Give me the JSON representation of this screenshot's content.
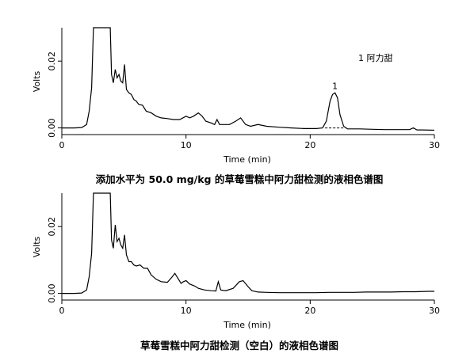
{
  "chart_data": [
    {
      "type": "line",
      "title": "添加水平为 50.0 mg/kg 的草莓雪糕中阿力甜检测的液相色谱图",
      "xlabel": "Time (min)",
      "ylabel": "Volts",
      "xlim": [
        0,
        30
      ],
      "ylim": [
        -0.002,
        0.03
      ],
      "xticks": [
        "0",
        "10",
        "20",
        "30"
      ],
      "xtick_values": [
        0,
        10,
        20,
        30
      ],
      "yticks": [
        "0.00",
        "0.02"
      ],
      "ytick_values": [
        0.0,
        0.02
      ],
      "legend": {
        "text": "1   阿力甜",
        "placement": "top-right"
      },
      "annotations": [
        {
          "text": "1",
          "x": 22.0,
          "y": 0.0105
        }
      ],
      "baseline": {
        "x": [
          21.2,
          22.8
        ],
        "y": [
          0.0,
          0.0
        ],
        "style": "dashed"
      },
      "grid": false,
      "series": [
        {
          "x": [
            0,
            1.0,
            1.6,
            2.0,
            2.2,
            2.4,
            2.55,
            3.9,
            4.0,
            4.15,
            4.3,
            4.45,
            4.6,
            4.75,
            4.9,
            5.05,
            5.2,
            5.4,
            5.6,
            5.8,
            6.0,
            6.2,
            6.5,
            6.8,
            7.2,
            7.6,
            8.0,
            8.5,
            9.0,
            9.5,
            10.0,
            10.3,
            10.6,
            11.0,
            11.3,
            11.6,
            12.0,
            12.3,
            12.5,
            12.7,
            13.0,
            13.5,
            14.0,
            14.4,
            14.8,
            15.2,
            15.8,
            16.5,
            17.5,
            18.5,
            19.5,
            20.5,
            21.0,
            21.3,
            21.6,
            21.8,
            22.0,
            22.2,
            22.4,
            22.7,
            23.0,
            24.0,
            25.0,
            26.0,
            27.0,
            28.0,
            28.3,
            28.6,
            29.0,
            30.0
          ],
          "y": [
            0.0,
            0.0,
            0.0001,
            0.001,
            0.005,
            0.012,
            0.03,
            0.03,
            0.016,
            0.0135,
            0.0175,
            0.015,
            0.016,
            0.014,
            0.0135,
            0.019,
            0.0115,
            0.0105,
            0.01,
            0.0085,
            0.008,
            0.007,
            0.0068,
            0.005,
            0.0045,
            0.0035,
            0.003,
            0.0028,
            0.0025,
            0.0025,
            0.0035,
            0.003,
            0.0035,
            0.0045,
            0.0035,
            0.002,
            0.0015,
            0.001,
            0.0025,
            0.001,
            0.001,
            0.001,
            0.002,
            0.003,
            0.001,
            0.0005,
            0.001,
            0.0005,
            0.0002,
            0.0,
            -0.0002,
            -0.0002,
            0.0,
            0.002,
            0.008,
            0.01,
            0.0105,
            0.009,
            0.004,
            0.0005,
            -0.0003,
            -0.0003,
            -0.0004,
            -0.0005,
            -0.0005,
            -0.0005,
            0.0,
            -0.0006,
            -0.0006,
            -0.0007
          ]
        }
      ]
    },
    {
      "type": "line",
      "title": "草莓雪糕中阿力甜检测（空白）的液相色谱图",
      "xlabel": "Time (min)",
      "ylabel": "Volts",
      "xlim": [
        0,
        30
      ],
      "ylim": [
        -0.002,
        0.03
      ],
      "xticks": [
        "0",
        "10",
        "20",
        "30"
      ],
      "xtick_values": [
        0,
        10,
        20,
        30
      ],
      "yticks": [
        "0.00",
        "0.02"
      ],
      "ytick_values": [
        0.0,
        0.02
      ],
      "grid": false,
      "series": [
        {
          "x": [
            0,
            1.0,
            1.6,
            2.0,
            2.2,
            2.4,
            2.55,
            3.9,
            4.0,
            4.15,
            4.3,
            4.45,
            4.6,
            4.75,
            4.9,
            5.05,
            5.2,
            5.4,
            5.6,
            5.8,
            6.0,
            6.3,
            6.6,
            6.9,
            7.2,
            7.6,
            8.0,
            8.5,
            8.9,
            9.1,
            9.3,
            9.6,
            9.8,
            10.0,
            10.3,
            10.7,
            11.0,
            11.5,
            12.0,
            12.4,
            12.6,
            12.8,
            13.2,
            13.8,
            14.3,
            14.6,
            15.0,
            15.3,
            15.8,
            16.5,
            17.5,
            18.5,
            19.5,
            20.5,
            21.5,
            22.5,
            23.5,
            24.5,
            25.5,
            26.5,
            27.5,
            28.5,
            29.5,
            30.0
          ],
          "y": [
            0.0,
            0.0,
            0.0001,
            0.001,
            0.005,
            0.012,
            0.03,
            0.03,
            0.016,
            0.0135,
            0.0205,
            0.0155,
            0.0165,
            0.0145,
            0.0135,
            0.0175,
            0.0115,
            0.0095,
            0.0095,
            0.0085,
            0.0082,
            0.0085,
            0.0075,
            0.0075,
            0.0055,
            0.0042,
            0.0035,
            0.0033,
            0.005,
            0.006,
            0.0048,
            0.003,
            0.0035,
            0.0038,
            0.0028,
            0.0022,
            0.0015,
            0.001,
            0.0008,
            0.0007,
            0.0035,
            0.001,
            0.0008,
            0.0015,
            0.0035,
            0.0038,
            0.002,
            0.0008,
            0.0004,
            0.0003,
            0.0002,
            0.0002,
            0.0002,
            0.0002,
            0.0003,
            0.0003,
            0.0003,
            0.0004,
            0.0004,
            0.0004,
            0.0005,
            0.0005,
            0.0006,
            0.0006
          ]
        }
      ]
    }
  ]
}
